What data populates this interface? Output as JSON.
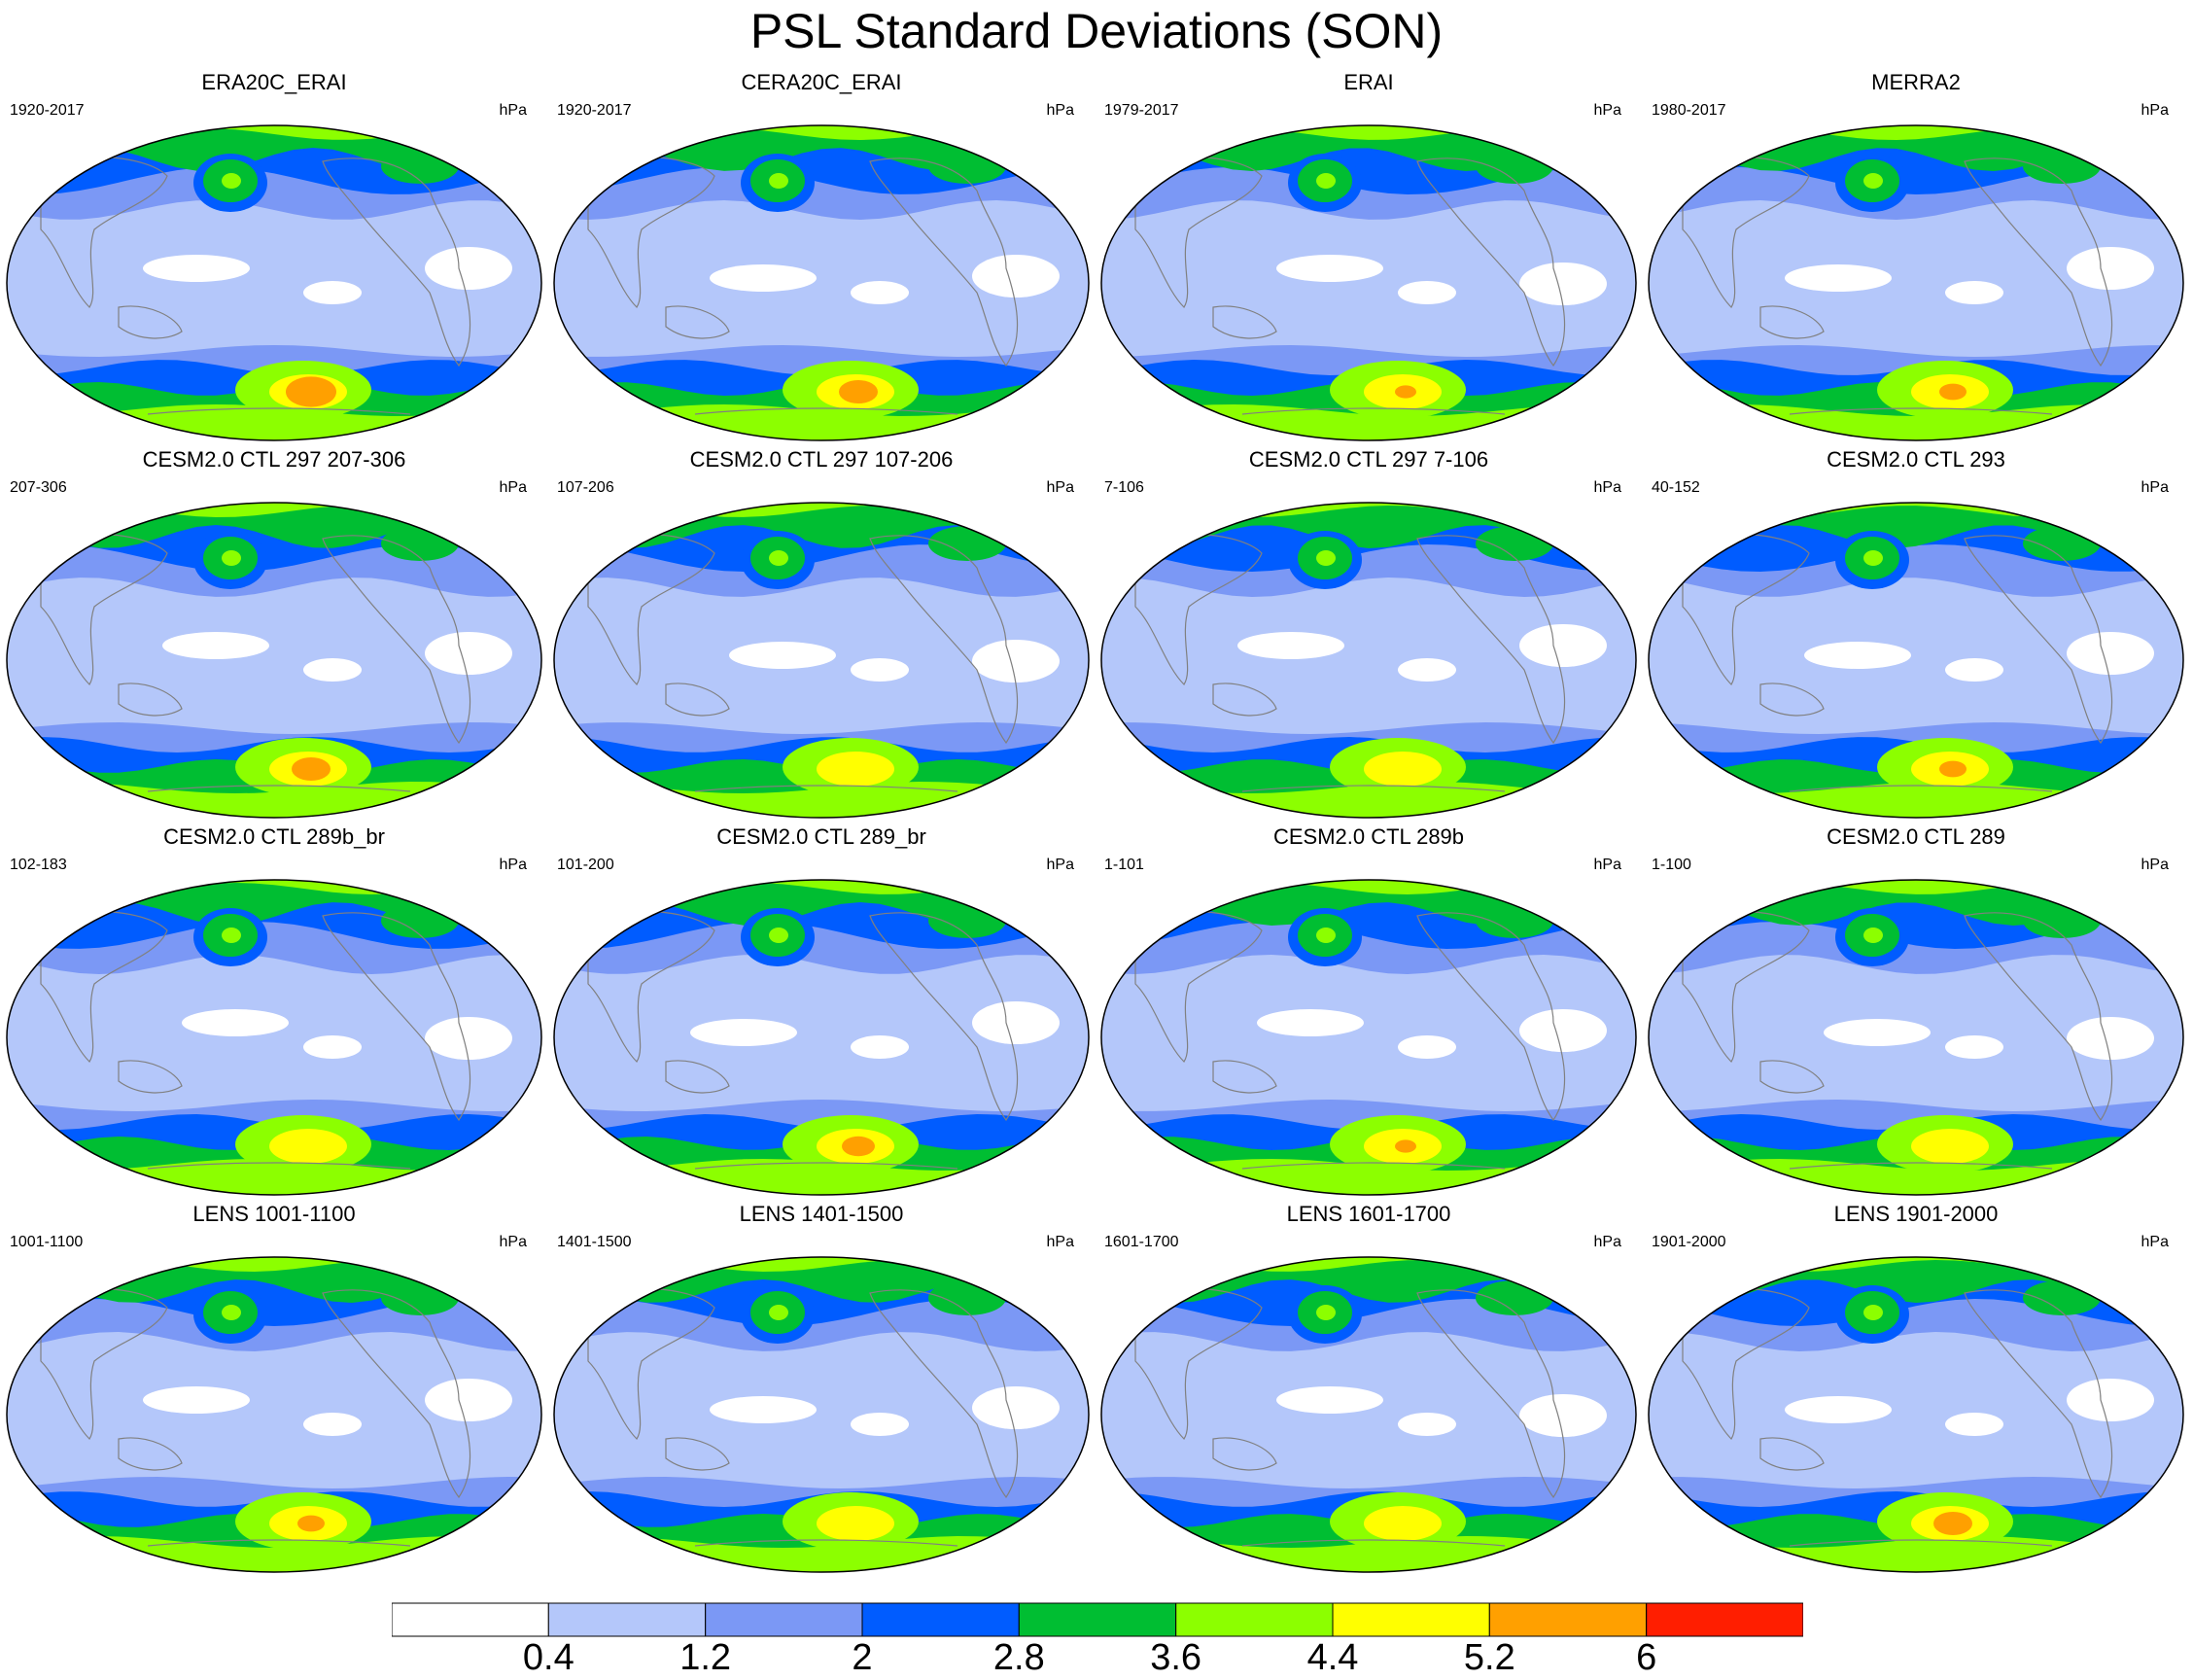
{
  "title": "PSL Standard Deviations (SON)",
  "units": "hPa",
  "panels": [
    {
      "title": "ERA20C_ERAI",
      "years": "1920-2017",
      "peak": 5.8
    },
    {
      "title": "CERA20C_ERAI",
      "years": "1920-2017",
      "peak": 5.6
    },
    {
      "title": "ERAI",
      "years": "1979-2017",
      "peak": 5.3
    },
    {
      "title": "MERRA2",
      "years": "1980-2017",
      "peak": 5.4
    },
    {
      "title": "CESM2.0 CTL 297 207-306",
      "years": "207-306",
      "peak": 5.6
    },
    {
      "title": "CESM2.0 CTL 297 107-206",
      "years": "107-206",
      "peak": 5.0
    },
    {
      "title": "CESM2.0 CTL 297 7-106",
      "years": "7-106",
      "peak": 5.0
    },
    {
      "title": "CESM2.0 CTL 293",
      "years": "40-152",
      "peak": 5.4
    },
    {
      "title": "CESM2.0 CTL 289b_br",
      "years": "102-183",
      "peak": 5.0
    },
    {
      "title": "CESM2.0 CTL 289_br",
      "years": "101-200",
      "peak": 5.5
    },
    {
      "title": "CESM2.0 CTL 289b",
      "years": "1-101",
      "peak": 5.3
    },
    {
      "title": "CESM2.0 CTL 289",
      "years": "1-100",
      "peak": 5.0
    },
    {
      "title": "LENS 1001-1100",
      "years": "1001-1100",
      "peak": 5.4
    },
    {
      "title": "LENS 1401-1500",
      "years": "1401-1500",
      "peak": 5.0
    },
    {
      "title": "LENS 1601-1700",
      "years": "1601-1700",
      "peak": 5.0
    },
    {
      "title": "LENS 1901-2000",
      "years": "1901-2000",
      "peak": 5.6
    }
  ],
  "colorbar": {
    "levels": [
      "0.4",
      "1.2",
      "2",
      "2.8",
      "3.6",
      "4.4",
      "5.2",
      "6"
    ],
    "colors": [
      "#ffffff",
      "#b4c7fa",
      "#7b98f5",
      "#005cff",
      "#00be32",
      "#8cff00",
      "#ffff00",
      "#ffa000",
      "#ff1e00"
    ]
  }
}
